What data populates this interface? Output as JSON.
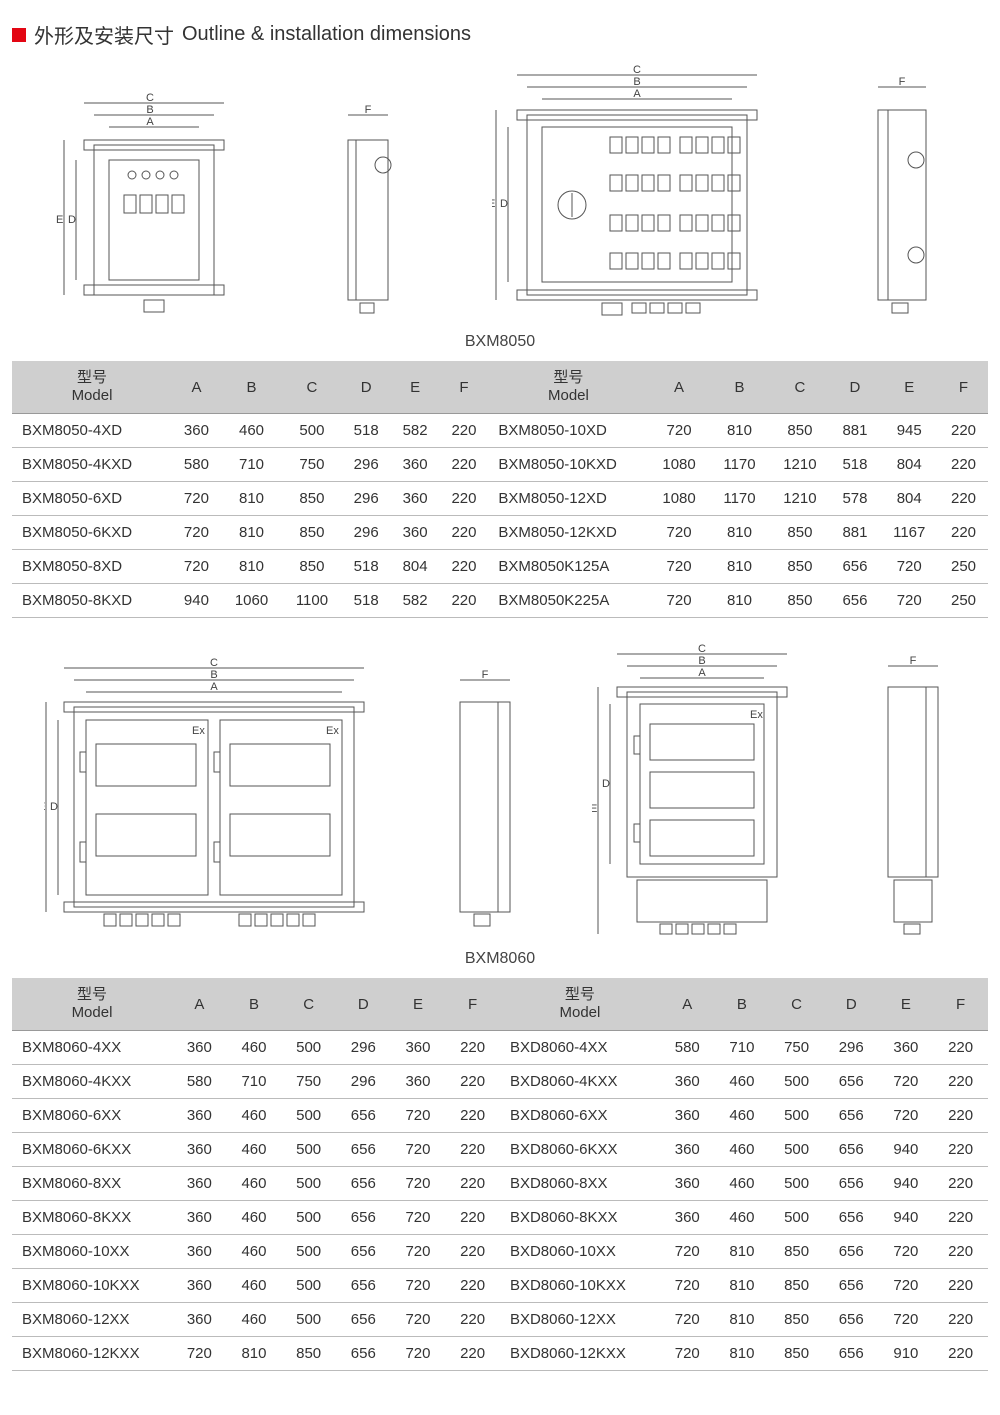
{
  "title_cn": "外形及安装尺寸",
  "title_en": "Outline & installation dimensions",
  "caption1": "BXM8050",
  "caption2": "BXM8060",
  "header_model_cn": "型号",
  "header_model_en": "Model",
  "columns": [
    "A",
    "B",
    "C",
    "D",
    "E",
    "F"
  ],
  "colors": {
    "accent_red": "#e30613",
    "table_header_bg": "#cfcfcf",
    "border": "#bbbbbb",
    "diagram_stroke": "#555555"
  },
  "table1": {
    "left": [
      {
        "model": "BXM8050-4XD",
        "v": [
          "360",
          "460",
          "500",
          "518",
          "582",
          "220"
        ]
      },
      {
        "model": "BXM8050-4KXD",
        "v": [
          "580",
          "710",
          "750",
          "296",
          "360",
          "220"
        ]
      },
      {
        "model": "BXM8050-6XD",
        "v": [
          "720",
          "810",
          "850",
          "296",
          "360",
          "220"
        ]
      },
      {
        "model": "BXM8050-6KXD",
        "v": [
          "720",
          "810",
          "850",
          "296",
          "360",
          "220"
        ]
      },
      {
        "model": "BXM8050-8XD",
        "v": [
          "720",
          "810",
          "850",
          "518",
          "804",
          "220"
        ]
      },
      {
        "model": "BXM8050-8KXD",
        "v": [
          "940",
          "1060",
          "1100",
          "518",
          "582",
          "220"
        ]
      }
    ],
    "right": [
      {
        "model": "BXM8050-10XD",
        "v": [
          "720",
          "810",
          "850",
          "881",
          "945",
          "220"
        ]
      },
      {
        "model": "BXM8050-10KXD",
        "v": [
          "1080",
          "1170",
          "1210",
          "518",
          "804",
          "220"
        ]
      },
      {
        "model": "BXM8050-12XD",
        "v": [
          "1080",
          "1170",
          "1210",
          "578",
          "804",
          "220"
        ]
      },
      {
        "model": "BXM8050-12KXD",
        "v": [
          "720",
          "810",
          "850",
          "881",
          "1167",
          "220"
        ]
      },
      {
        "model": "BXM8050K125A",
        "v": [
          "720",
          "810",
          "850",
          "656",
          "720",
          "250"
        ]
      },
      {
        "model": "BXM8050K225A",
        "v": [
          "720",
          "810",
          "850",
          "656",
          "720",
          "250"
        ]
      }
    ]
  },
  "table2": {
    "left": [
      {
        "model": "BXM8060-4XX",
        "v": [
          "360",
          "460",
          "500",
          "296",
          "360",
          "220"
        ]
      },
      {
        "model": "BXM8060-4KXX",
        "v": [
          "580",
          "710",
          "750",
          "296",
          "360",
          "220"
        ]
      },
      {
        "model": "BXM8060-6XX",
        "v": [
          "360",
          "460",
          "500",
          "656",
          "720",
          "220"
        ]
      },
      {
        "model": "BXM8060-6KXX",
        "v": [
          "360",
          "460",
          "500",
          "656",
          "720",
          "220"
        ]
      },
      {
        "model": "BXM8060-8XX",
        "v": [
          "360",
          "460",
          "500",
          "656",
          "720",
          "220"
        ]
      },
      {
        "model": "BXM8060-8KXX",
        "v": [
          "360",
          "460",
          "500",
          "656",
          "720",
          "220"
        ]
      },
      {
        "model": "BXM8060-10XX",
        "v": [
          "360",
          "460",
          "500",
          "656",
          "720",
          "220"
        ]
      },
      {
        "model": "BXM8060-10KXX",
        "v": [
          "360",
          "460",
          "500",
          "656",
          "720",
          "220"
        ]
      },
      {
        "model": "BXM8060-12XX",
        "v": [
          "360",
          "460",
          "500",
          "656",
          "720",
          "220"
        ]
      },
      {
        "model": "BXM8060-12KXX",
        "v": [
          "720",
          "810",
          "850",
          "656",
          "720",
          "220"
        ]
      }
    ],
    "right": [
      {
        "model": "BXD8060-4XX",
        "v": [
          "580",
          "710",
          "750",
          "296",
          "360",
          "220"
        ]
      },
      {
        "model": "BXD8060-4KXX",
        "v": [
          "360",
          "460",
          "500",
          "656",
          "720",
          "220"
        ]
      },
      {
        "model": "BXD8060-6XX",
        "v": [
          "360",
          "460",
          "500",
          "656",
          "720",
          "220"
        ]
      },
      {
        "model": "BXD8060-6KXX",
        "v": [
          "360",
          "460",
          "500",
          "656",
          "940",
          "220"
        ]
      },
      {
        "model": "BXD8060-8XX",
        "v": [
          "360",
          "460",
          "500",
          "656",
          "940",
          "220"
        ]
      },
      {
        "model": "BXD8060-8KXX",
        "v": [
          "360",
          "460",
          "500",
          "656",
          "940",
          "220"
        ]
      },
      {
        "model": "BXD8060-10XX",
        "v": [
          "720",
          "810",
          "850",
          "656",
          "720",
          "220"
        ]
      },
      {
        "model": "BXD8060-10KXX",
        "v": [
          "720",
          "810",
          "850",
          "656",
          "720",
          "220"
        ]
      },
      {
        "model": "BXD8060-12XX",
        "v": [
          "720",
          "810",
          "850",
          "656",
          "720",
          "220"
        ]
      },
      {
        "model": "BXD8060-12KXX",
        "v": [
          "720",
          "810",
          "850",
          "656",
          "910",
          "220"
        ]
      }
    ]
  },
  "diagram_style": {
    "stroke": "#555",
    "stroke_width": 1,
    "label_font_size": 11,
    "label_color": "#444"
  }
}
